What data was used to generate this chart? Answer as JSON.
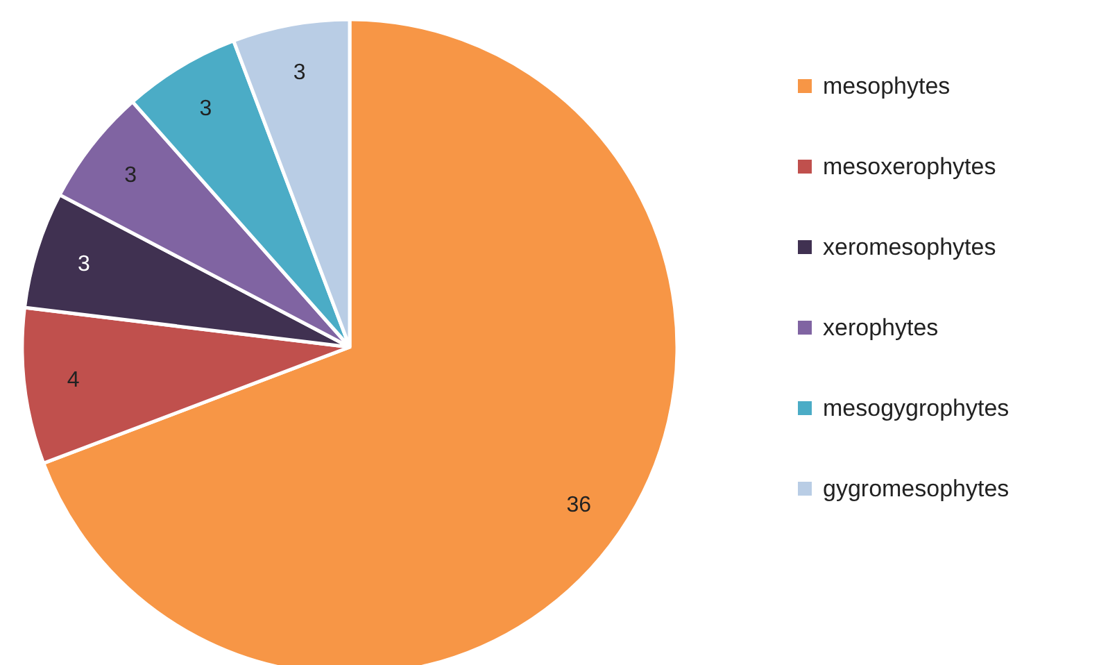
{
  "chart_data": {
    "type": "pie",
    "categories": [
      "mesophytes",
      "mesoxerophytes",
      "xeromesophytes",
      "xerophytes",
      "mesogygrophytes",
      "gygromesophytes"
    ],
    "values": [
      36,
      4,
      3,
      3,
      3,
      3
    ],
    "colors": [
      "#f79646",
      "#c0504d",
      "#403151",
      "#8064a2",
      "#4bacc6",
      "#b9cde5"
    ],
    "data_labels": true,
    "legend": "right"
  }
}
